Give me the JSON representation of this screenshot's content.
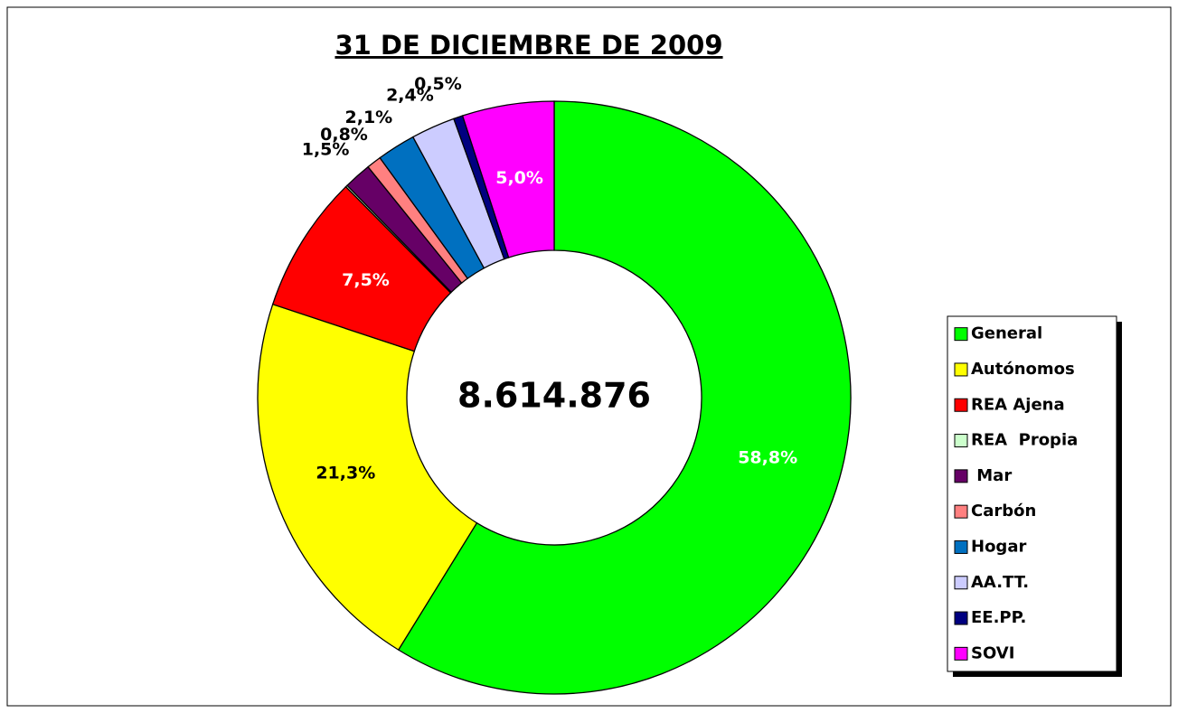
{
  "chart_data": {
    "type": "donut",
    "title": "31 DE DICIEMBRE DE 2009",
    "center_label": "8.614.876",
    "categories": [
      "General",
      "Autónomos",
      "REA Ajena",
      "REA  Propia",
      " Mar",
      "Carbón",
      "Hogar",
      "AA.TT.",
      "EE.PP.",
      "SOVI"
    ],
    "values": [
      58.8,
      21.3,
      7.5,
      0.1,
      1.5,
      0.8,
      2.1,
      2.4,
      0.5,
      5.0
    ],
    "value_labels": [
      "58,8%",
      "21,3%",
      "7,5%",
      null,
      "1,5%",
      "0,8%",
      "2,1%",
      "2,4%",
      "0,5%",
      "5,0%"
    ],
    "colors": [
      "#00ff00",
      "#ffff00",
      "#ff0000",
      "#ccffcc",
      "#660066",
      "#ff8080",
      "#0070c0",
      "#ccccff",
      "#000080",
      "#ff00ff"
    ],
    "legend": "right"
  }
}
